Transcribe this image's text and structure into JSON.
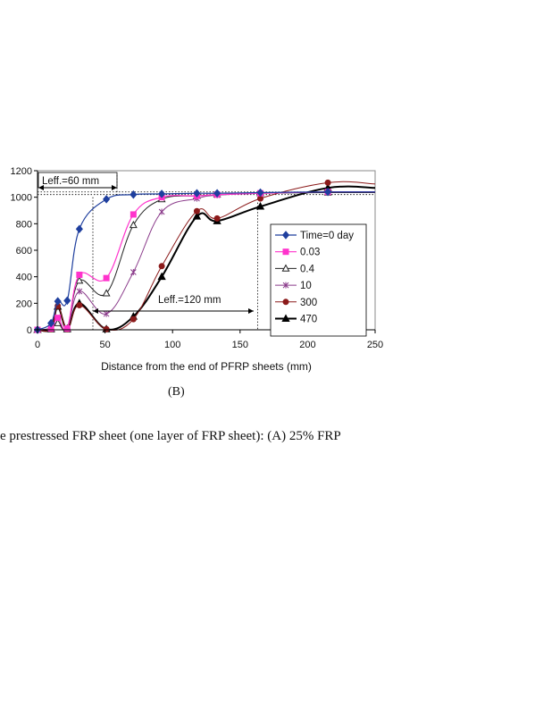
{
  "panel_label": "(B)",
  "caption": "e prestressed FRP sheet (one layer of FRP sheet): (A) 25% FRP",
  "chart_data": {
    "type": "line",
    "xlabel": "Distance from the end of PFRP sheets (mm)",
    "ylabel": "",
    "xlim": [
      0,
      250
    ],
    "ylim": [
      0,
      1200
    ],
    "xticks": [
      0,
      50,
      100,
      150,
      200,
      250
    ],
    "yticks": [
      0,
      200,
      400,
      600,
      800,
      1000,
      1200
    ],
    "grid": false,
    "legend_position": "right-middle",
    "annotations": [
      {
        "text": "Leff.=60 mm"
      },
      {
        "text": "Leff.=120 mm"
      }
    ],
    "series": [
      {
        "name": "Time=0 day",
        "color": "#1f3f9e",
        "marker": "diamond",
        "line_width": 1.2,
        "x": [
          0,
          10,
          15,
          22,
          31,
          51,
          71,
          92,
          118,
          133,
          165,
          215
        ],
        "y": [
          0,
          50,
          215,
          220,
          760,
          985,
          1020,
          1025,
          1030,
          1030,
          1035,
          1040
        ]
      },
      {
        "name": "0.03",
        "color": "#ff33cc",
        "marker": "square",
        "line_width": 1.2,
        "x": [
          0,
          10,
          15,
          22,
          31,
          51,
          71,
          92,
          118,
          133,
          165,
          215
        ],
        "y": [
          0,
          10,
          90,
          10,
          415,
          390,
          870,
          1000,
          1010,
          1020,
          1030,
          1040
        ]
      },
      {
        "name": "0.4",
        "color": "#222222",
        "marker": "triangle-open",
        "line_width": 1.0,
        "x": [
          0,
          10,
          15,
          22,
          31,
          51,
          71,
          92,
          118,
          133,
          165,
          215
        ],
        "y": [
          0,
          10,
          50,
          10,
          370,
          275,
          790,
          985,
          1010,
          1020,
          1030,
          1035
        ]
      },
      {
        "name": "10",
        "color": "#8a3a8a",
        "marker": "asterisk",
        "line_width": 1.0,
        "x": [
          0,
          10,
          15,
          22,
          31,
          51,
          71,
          92,
          118,
          133,
          165,
          215
        ],
        "y": [
          0,
          10,
          60,
          10,
          290,
          120,
          435,
          890,
          990,
          1015,
          1030,
          1040
        ]
      },
      {
        "name": "300",
        "color": "#8b1a1a",
        "marker": "circle",
        "line_width": 1.0,
        "x": [
          0,
          10,
          15,
          22,
          31,
          51,
          71,
          92,
          118,
          133,
          165,
          215
        ],
        "y": [
          0,
          5,
          180,
          5,
          185,
          5,
          80,
          480,
          895,
          840,
          990,
          1110
        ]
      },
      {
        "name": "470",
        "color": "#000000",
        "marker": "triangle",
        "line_width": 2.0,
        "x": [
          0,
          10,
          15,
          22,
          31,
          51,
          71,
          92,
          118,
          133,
          165,
          215
        ],
        "y": [
          0,
          5,
          175,
          5,
          200,
          5,
          100,
          400,
          855,
          820,
          930,
          1070
        ]
      }
    ]
  }
}
